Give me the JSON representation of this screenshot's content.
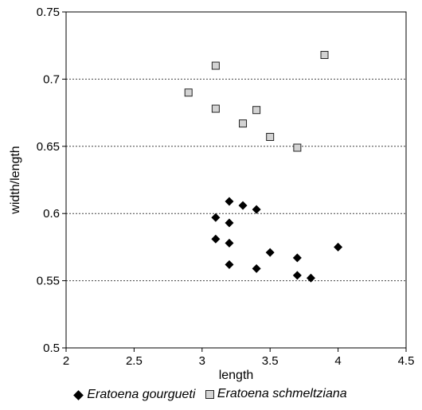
{
  "chart_data": {
    "type": "scatter",
    "xlabel": "length",
    "ylabel": "width/length",
    "xlim": [
      2,
      4.5
    ],
    "ylim": [
      0.5,
      0.75
    ],
    "x_ticks": [
      "2",
      "2.5",
      "3",
      "3.5",
      "4",
      "4.5"
    ],
    "y_ticks": [
      "0.5",
      "0.55",
      "0.6",
      "0.65",
      "0.7",
      "0.75"
    ],
    "grid": "horizontal dotted",
    "legend_position": "bottom",
    "series": [
      {
        "name": "Eratoena gourgueti",
        "marker": "diamond",
        "color": "#000000",
        "points": [
          [
            3.1,
            0.597
          ],
          [
            3.1,
            0.581
          ],
          [
            3.2,
            0.609
          ],
          [
            3.2,
            0.593
          ],
          [
            3.2,
            0.578
          ],
          [
            3.2,
            0.562
          ],
          [
            3.3,
            0.606
          ],
          [
            3.4,
            0.603
          ],
          [
            3.4,
            0.559
          ],
          [
            3.5,
            0.571
          ],
          [
            3.7,
            0.567
          ],
          [
            3.7,
            0.554
          ],
          [
            3.8,
            0.552
          ],
          [
            4.0,
            0.575
          ]
        ]
      },
      {
        "name": "Eratoena schmeltziana",
        "marker": "square",
        "color": "#d3d3d3",
        "points": [
          [
            2.9,
            0.69
          ],
          [
            3.1,
            0.71
          ],
          [
            3.1,
            0.678
          ],
          [
            3.3,
            0.667
          ],
          [
            3.4,
            0.677
          ],
          [
            3.5,
            0.657
          ],
          [
            3.7,
            0.649
          ],
          [
            3.9,
            0.718
          ]
        ]
      }
    ]
  }
}
